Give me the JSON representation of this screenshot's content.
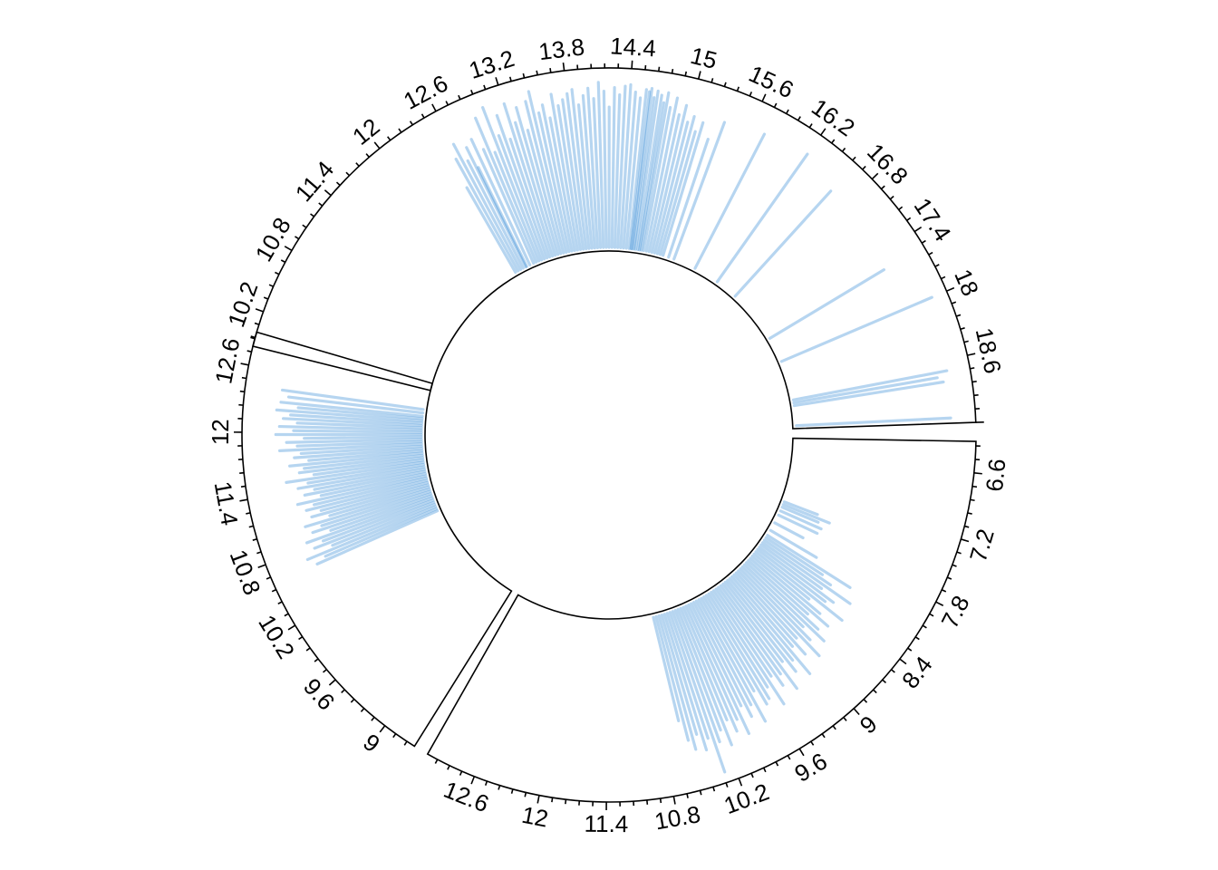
{
  "chart_data": {
    "type": "circular-segments",
    "title": "",
    "line_color": "#2f86d4",
    "line_opacity": 0.35,
    "ylim": [
      0,
      1
    ],
    "sectors": [
      {
        "name": "sector-1",
        "xlim": [
          9.88,
          19.2
        ],
        "tick_labels": [
          "10.2",
          "10.8",
          "11.4",
          "12",
          "12.6",
          "13.2",
          "13.8",
          "14.4",
          "15",
          "15.6",
          "16.2",
          "16.8",
          "17.4",
          "18",
          "18.6"
        ],
        "lines": [
          [
            12.5,
            0.55
          ],
          [
            12.55,
            0.72
          ],
          [
            12.6,
            0.8
          ],
          [
            12.65,
            0.68
          ],
          [
            12.7,
            0.75
          ],
          [
            12.72,
            0.62
          ],
          [
            12.78,
            0.78
          ],
          [
            12.85,
            0.7
          ],
          [
            12.9,
            0.88
          ],
          [
            12.95,
            0.66
          ],
          [
            13.0,
            0.92
          ],
          [
            13.05,
            0.74
          ],
          [
            13.1,
            0.85
          ],
          [
            13.15,
            0.7
          ],
          [
            13.2,
            0.9
          ],
          [
            13.25,
            0.78
          ],
          [
            13.3,
            0.86
          ],
          [
            13.35,
            0.72
          ],
          [
            13.4,
            0.88
          ],
          [
            13.45,
            0.93
          ],
          [
            13.5,
            0.8
          ],
          [
            13.55,
            0.84
          ],
          [
            13.6,
            0.76
          ],
          [
            13.65,
            0.89
          ],
          [
            13.7,
            0.82
          ],
          [
            13.75,
            0.85
          ],
          [
            13.8,
            0.88
          ],
          [
            13.85,
            0.9
          ],
          [
            13.9,
            0.81
          ],
          [
            13.95,
            0.86
          ],
          [
            14.0,
            0.9
          ],
          [
            14.05,
            0.84
          ],
          [
            14.1,
            0.93
          ],
          [
            14.15,
            0.88
          ],
          [
            14.2,
            0.79
          ],
          [
            14.25,
            0.9
          ],
          [
            14.3,
            0.86
          ],
          [
            14.35,
            0.91
          ],
          [
            14.4,
            0.92
          ],
          [
            14.45,
            0.88
          ],
          [
            14.5,
            0.85
          ],
          [
            14.55,
            0.9
          ],
          [
            14.58,
            0.89
          ],
          [
            14.6,
            0.91
          ],
          [
            14.63,
            0.86
          ],
          [
            14.66,
            0.9
          ],
          [
            14.7,
            0.88
          ],
          [
            14.73,
            0.84
          ],
          [
            14.76,
            0.9
          ],
          [
            14.8,
            0.82
          ],
          [
            14.85,
            0.88
          ],
          [
            14.9,
            0.79
          ],
          [
            14.95,
            0.85
          ],
          [
            15.0,
            0.76
          ],
          [
            15.05,
            0.8
          ],
          [
            15.1,
            0.72
          ],
          [
            15.15,
            0.78
          ],
          [
            15.25,
            0.7
          ],
          [
            15.35,
            0.82
          ],
          [
            15.75,
            0.85
          ],
          [
            16.2,
            0.88
          ],
          [
            16.6,
            0.8
          ],
          [
            17.55,
            0.75
          ],
          [
            18.0,
            0.92
          ],
          [
            18.7,
            0.88
          ],
          [
            18.75,
            0.82
          ],
          [
            18.8,
            0.85
          ],
          [
            19.15,
            0.87
          ]
        ]
      },
      {
        "name": "sector-2",
        "xlim": [
          6.32,
          13.06
        ],
        "tick_labels": [
          "6.6",
          "7.2",
          "7.8",
          "8.4",
          "9",
          "9.6",
          "10.2",
          "10.8",
          "11.4",
          "12",
          "12.6"
        ],
        "lines": [
          [
            7.45,
            0.2
          ],
          [
            7.5,
            0.28
          ],
          [
            7.55,
            0.22
          ],
          [
            7.62,
            0.25
          ],
          [
            7.7,
            0.24
          ],
          [
            7.85,
            0.18
          ],
          [
            8.0,
            0.3
          ],
          [
            8.1,
            0.55
          ],
          [
            8.15,
            0.38
          ],
          [
            8.2,
            0.45
          ],
          [
            8.25,
            0.6
          ],
          [
            8.3,
            0.42
          ],
          [
            8.35,
            0.52
          ],
          [
            8.4,
            0.48
          ],
          [
            8.45,
            0.62
          ],
          [
            8.5,
            0.4
          ],
          [
            8.55,
            0.5
          ],
          [
            8.6,
            0.58
          ],
          [
            8.65,
            0.45
          ],
          [
            8.7,
            0.55
          ],
          [
            8.75,
            0.62
          ],
          [
            8.8,
            0.48
          ],
          [
            8.85,
            0.56
          ],
          [
            8.9,
            0.66
          ],
          [
            8.95,
            0.5
          ],
          [
            9.0,
            0.6
          ],
          [
            9.05,
            0.52
          ],
          [
            9.1,
            0.7
          ],
          [
            9.15,
            0.58
          ],
          [
            9.2,
            0.64
          ],
          [
            9.25,
            0.55
          ],
          [
            9.3,
            0.72
          ],
          [
            9.35,
            0.6
          ],
          [
            9.4,
            0.66
          ],
          [
            9.45,
            0.58
          ],
          [
            9.5,
            0.75
          ],
          [
            9.55,
            0.62
          ],
          [
            9.6,
            0.68
          ],
          [
            9.65,
            0.7
          ],
          [
            9.7,
            0.6
          ],
          [
            9.75,
            0.78
          ],
          [
            9.8,
            0.66
          ],
          [
            9.85,
            0.72
          ],
          [
            9.9,
            0.64
          ],
          [
            9.95,
            0.8
          ],
          [
            10.0,
            0.7
          ],
          [
            10.05,
            0.76
          ],
          [
            10.1,
            0.68
          ],
          [
            10.15,
            0.82
          ],
          [
            10.2,
            0.72
          ],
          [
            10.25,
            0.78
          ],
          [
            10.3,
            0.95
          ],
          [
            10.35,
            0.74
          ],
          [
            10.4,
            0.8
          ],
          [
            10.45,
            0.7
          ],
          [
            10.5,
            0.78
          ],
          [
            10.55,
            0.72
          ],
          [
            10.6,
            0.6
          ]
        ]
      },
      {
        "name": "sector-3",
        "xlim": [
          8.68,
          12.9
        ],
        "tick_labels": [
          "9",
          "9.6",
          "10.2",
          "10.8",
          "11.4",
          "12",
          "12.6"
        ],
        "lines": [
          [
            10.62,
            0.74
          ],
          [
            10.66,
            0.68
          ],
          [
            10.7,
            0.78
          ],
          [
            10.74,
            0.62
          ],
          [
            10.78,
            0.72
          ],
          [
            10.82,
            0.66
          ],
          [
            10.86,
            0.75
          ],
          [
            10.9,
            0.6
          ],
          [
            10.94,
            0.7
          ],
          [
            10.98,
            0.64
          ],
          [
            11.02,
            0.73
          ],
          [
            11.06,
            0.58
          ],
          [
            11.1,
            0.68
          ],
          [
            11.14,
            0.62
          ],
          [
            11.18,
            0.7
          ],
          [
            11.22,
            0.65
          ],
          [
            11.26,
            0.74
          ],
          [
            11.3,
            0.6
          ],
          [
            11.34,
            0.69
          ],
          [
            11.38,
            0.63
          ],
          [
            11.42,
            0.72
          ],
          [
            11.46,
            0.66
          ],
          [
            11.5,
            0.78
          ],
          [
            11.54,
            0.62
          ],
          [
            11.58,
            0.7
          ],
          [
            11.62,
            0.67
          ],
          [
            11.66,
            0.75
          ],
          [
            11.7,
            0.64
          ],
          [
            11.74,
            0.72
          ],
          [
            11.78,
            0.68
          ],
          [
            11.82,
            0.8
          ],
          [
            11.86,
            0.7
          ],
          [
            11.9,
            0.76
          ],
          [
            11.94,
            0.66
          ],
          [
            11.98,
            0.82
          ],
          [
            12.02,
            0.72
          ],
          [
            12.06,
            0.8
          ],
          [
            12.1,
            0.7
          ],
          [
            12.14,
            0.78
          ],
          [
            12.18,
            0.74
          ],
          [
            12.22,
            0.82
          ],
          [
            12.26,
            0.7
          ],
          [
            12.3,
            0.8
          ],
          [
            12.36,
            0.76
          ],
          [
            12.42,
            0.8
          ]
        ]
      }
    ]
  }
}
